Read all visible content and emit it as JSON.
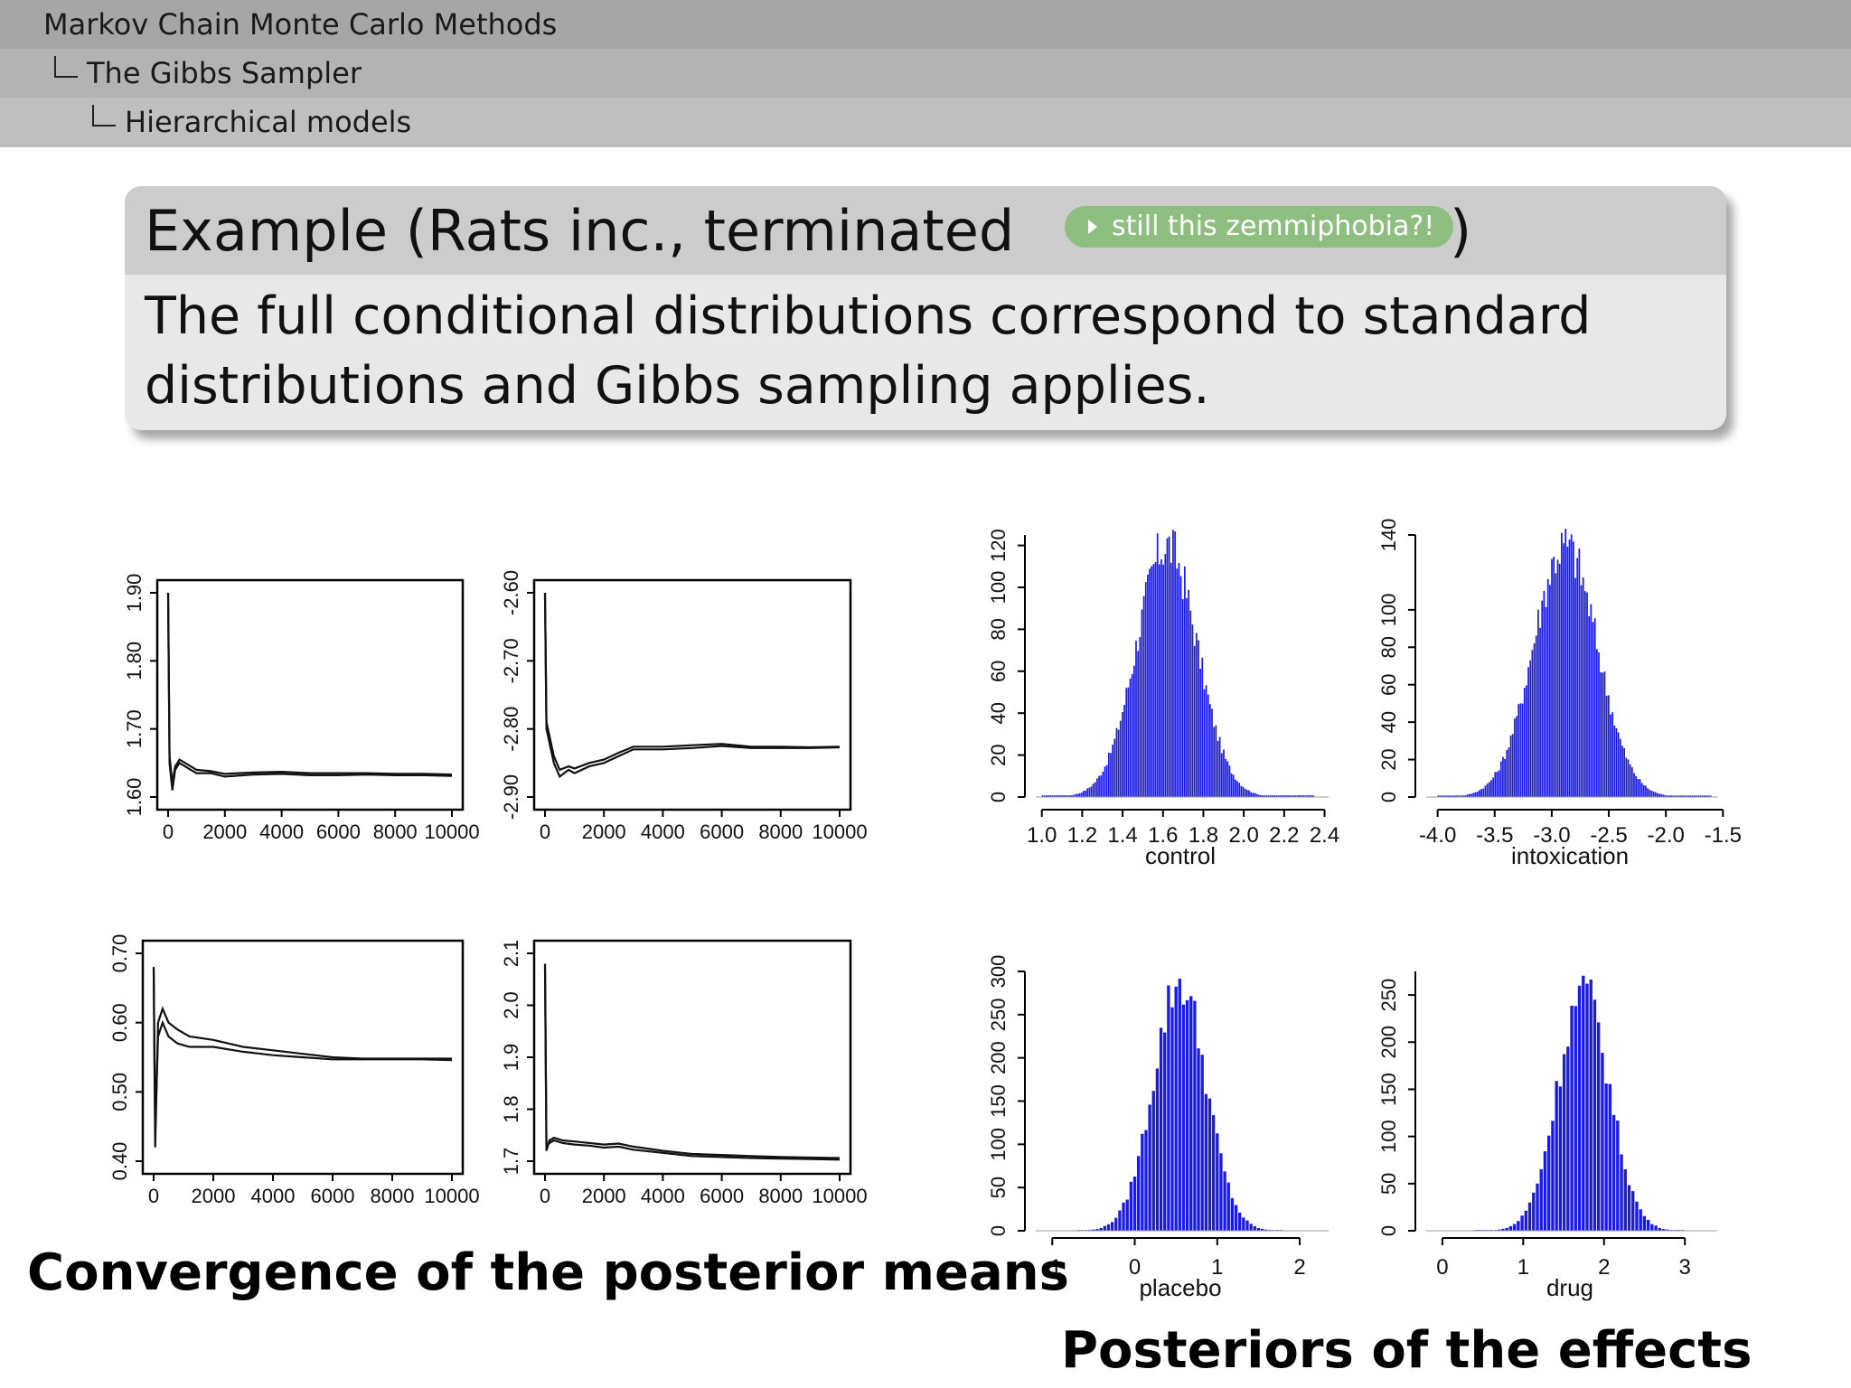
{
  "header": {
    "section": "Markov Chain Monte Carlo Methods",
    "subsection": "The Gibbs Sampler",
    "subsubsection": "Hierarchical models"
  },
  "example": {
    "title": "Example (Rats inc., terminated",
    "link_label": "still this zemmiphobia?!",
    "title_close": ")",
    "body": "The full conditional distributions correspond to standard distributions and Gibbs sampling applies."
  },
  "captions": {
    "left": "Convergence of the posterior means",
    "right": "Posteriors of the effects"
  },
  "colors": {
    "histogram_bar": "#1a1ae6",
    "trace_line": "#111111",
    "link_button": "#8fbf80"
  },
  "chart_data": [
    {
      "type": "line",
      "xlabel": "",
      "ylabel": "",
      "xlim": [
        0,
        10000
      ],
      "ylim": [
        1.6,
        1.9
      ],
      "x_ticks": [
        "0",
        "2000",
        "4000",
        "6000",
        "8000",
        "10000"
      ],
      "y_ticks": [
        "1.60",
        "1.70",
        "1.80",
        "1.90"
      ],
      "series": [
        {
          "x": [
            0,
            50,
            150,
            250,
            400,
            600,
            800,
            1000,
            1500,
            2000,
            3000,
            4000,
            5000,
            6000,
            7000,
            8000,
            9000,
            10000
          ],
          "y": [
            1.9,
            1.65,
            1.61,
            1.64,
            1.65,
            1.645,
            1.64,
            1.635,
            1.635,
            1.63,
            1.633,
            1.634,
            1.632,
            1.632,
            1.633,
            1.632,
            1.632,
            1.631
          ]
        },
        {
          "x": [
            0,
            50,
            150,
            250,
            400,
            600,
            800,
            1000,
            1500,
            2000,
            3000,
            4000,
            5000,
            6000,
            7000,
            8000,
            9000,
            10000
          ],
          "y": [
            1.9,
            1.66,
            1.62,
            1.645,
            1.655,
            1.65,
            1.645,
            1.64,
            1.638,
            1.634,
            1.636,
            1.637,
            1.635,
            1.635,
            1.635,
            1.634,
            1.634,
            1.633
          ]
        }
      ]
    },
    {
      "type": "line",
      "xlabel": "",
      "ylabel": "",
      "xlim": [
        0,
        10000
      ],
      "ylim": [
        -2.9,
        -2.6
      ],
      "x_ticks": [
        "0",
        "2000",
        "4000",
        "6000",
        "8000",
        "10000"
      ],
      "y_ticks": [
        "-2.90",
        "-2.80",
        "-2.70",
        "-2.60"
      ],
      "series": [
        {
          "x": [
            0,
            50,
            150,
            300,
            500,
            800,
            1000,
            1500,
            2000,
            2500,
            3000,
            4000,
            5000,
            6000,
            7000,
            8000,
            9000,
            10000
          ],
          "y": [
            -2.6,
            -2.8,
            -2.82,
            -2.85,
            -2.87,
            -2.86,
            -2.865,
            -2.855,
            -2.85,
            -2.84,
            -2.83,
            -2.83,
            -2.828,
            -2.825,
            -2.828,
            -2.828,
            -2.828,
            -2.827
          ]
        },
        {
          "x": [
            0,
            50,
            150,
            300,
            500,
            800,
            1000,
            1500,
            2000,
            2500,
            3000,
            4000,
            5000,
            6000,
            7000,
            8000,
            9000,
            10000
          ],
          "y": [
            -2.6,
            -2.79,
            -2.81,
            -2.84,
            -2.86,
            -2.855,
            -2.858,
            -2.85,
            -2.845,
            -2.835,
            -2.826,
            -2.826,
            -2.824,
            -2.822,
            -2.826,
            -2.826,
            -2.827,
            -2.826
          ]
        }
      ]
    },
    {
      "type": "line",
      "xlabel": "",
      "ylabel": "",
      "xlim": [
        0,
        10000
      ],
      "ylim": [
        0.4,
        0.7
      ],
      "x_ticks": [
        "0",
        "2000",
        "4000",
        "6000",
        "8000",
        "10000"
      ],
      "y_ticks": [
        "0.40",
        "0.50",
        "0.60",
        "0.70"
      ],
      "series": [
        {
          "x": [
            0,
            50,
            150,
            300,
            500,
            800,
            1200,
            2000,
            3000,
            4000,
            5000,
            6000,
            7000,
            8000,
            9000,
            10000
          ],
          "y": [
            0.68,
            0.42,
            0.6,
            0.62,
            0.6,
            0.59,
            0.58,
            0.575,
            0.565,
            0.56,
            0.555,
            0.55,
            0.548,
            0.548,
            0.548,
            0.548
          ]
        },
        {
          "x": [
            0,
            50,
            150,
            300,
            500,
            800,
            1200,
            2000,
            3000,
            4000,
            5000,
            6000,
            7000,
            8000,
            9000,
            10000
          ],
          "y": [
            0.68,
            0.45,
            0.58,
            0.6,
            0.58,
            0.57,
            0.565,
            0.565,
            0.558,
            0.553,
            0.55,
            0.547,
            0.547,
            0.547,
            0.547,
            0.546
          ]
        }
      ]
    },
    {
      "type": "line",
      "xlabel": "",
      "ylabel": "",
      "xlim": [
        0,
        10000
      ],
      "ylim": [
        1.7,
        2.1
      ],
      "x_ticks": [
        "0",
        "2000",
        "4000",
        "6000",
        "8000",
        "10000"
      ],
      "y_ticks": [
        "1.7",
        "1.8",
        "1.9",
        "2.0",
        "2.1"
      ],
      "series": [
        {
          "x": [
            0,
            50,
            150,
            300,
            600,
            1000,
            1500,
            2000,
            2500,
            3000,
            4000,
            5000,
            6000,
            7000,
            8000,
            9000,
            10000
          ],
          "y": [
            2.08,
            1.72,
            1.74,
            1.745,
            1.74,
            1.738,
            1.735,
            1.732,
            1.734,
            1.728,
            1.72,
            1.714,
            1.712,
            1.71,
            1.708,
            1.707,
            1.706
          ]
        },
        {
          "x": [
            0,
            50,
            150,
            300,
            600,
            1000,
            1500,
            2000,
            2500,
            3000,
            4000,
            5000,
            6000,
            7000,
            8000,
            9000,
            10000
          ],
          "y": [
            2.08,
            1.73,
            1.735,
            1.74,
            1.735,
            1.732,
            1.73,
            1.726,
            1.728,
            1.722,
            1.716,
            1.71,
            1.708,
            1.706,
            1.705,
            1.704,
            1.703
          ]
        }
      ]
    },
    {
      "type": "bar",
      "xlabel": "control",
      "ylabel": "",
      "xlim": [
        0.97,
        2.42
      ],
      "ylim": [
        0,
        125
      ],
      "x_ticks": [
        "1.0",
        "1.2",
        "1.4",
        "1.6",
        "1.8",
        "2.0",
        "2.2",
        "2.4"
      ],
      "y_ticks": [
        "0",
        "20",
        "40",
        "60",
        "80",
        "100",
        "120"
      ],
      "distribution": {
        "mean": 1.62,
        "sd": 0.15,
        "peak": 125,
        "range": [
          1.0,
          2.35
        ]
      }
    },
    {
      "type": "bar",
      "xlabel": "intoxication",
      "ylabel": "",
      "xlim": [
        -4.1,
        -1.55
      ],
      "ylim": [
        0,
        140
      ],
      "x_ticks": [
        "-4.0",
        "-3.5",
        "-3.0",
        "-2.5",
        "-2.0",
        "-1.5"
      ],
      "y_ticks": [
        "0",
        "20",
        "40",
        "60",
        "80",
        "100",
        "140"
      ],
      "distribution": {
        "mean": -2.88,
        "sd": 0.28,
        "peak": 140,
        "range": [
          -4.0,
          -1.6
        ]
      }
    },
    {
      "type": "bar",
      "xlabel": "placebo",
      "ylabel": "",
      "xlim": [
        -1.2,
        2.35
      ],
      "ylim": [
        0,
        300
      ],
      "x_ticks": [
        "-1",
        "0",
        "1",
        "2"
      ],
      "y_ticks": [
        "0",
        "50",
        "100",
        "150",
        "200",
        "250",
        "300"
      ],
      "distribution": {
        "mean": 0.55,
        "sd": 0.32,
        "peak": 300,
        "range": [
          -0.7,
          1.8
        ]
      }
    },
    {
      "type": "bar",
      "xlabel": "drug",
      "ylabel": "",
      "xlim": [
        -0.2,
        3.4
      ],
      "ylim": [
        0,
        275
      ],
      "x_ticks": [
        "0",
        "1",
        "2",
        "3"
      ],
      "y_ticks": [
        "0",
        "50",
        "100",
        "150",
        "200",
        "250"
      ],
      "distribution": {
        "mean": 1.75,
        "sd": 0.32,
        "peak": 265,
        "range": [
          0.4,
          3.0
        ]
      }
    }
  ]
}
